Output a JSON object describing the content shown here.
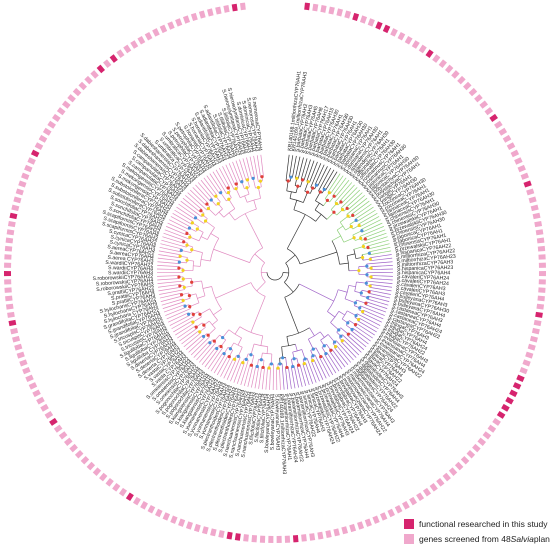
{
  "legend": {
    "items": [
      {
        "label": "functional researched in this study",
        "color": "#d6246e"
      },
      {
        "label_pre": "genes screened from 48 ",
        "label_em": "Salvia",
        "label_post": " plants",
        "color": "#f0a8cc"
      }
    ]
  },
  "colors": {
    "ring_light": "#f0a8cc",
    "ring_dark": "#d6246e",
    "ring_gap": "#ffffff",
    "branch_black": "#333333",
    "branch_pink": "#e08ac0",
    "branch_green": "#8ed07a",
    "branch_purple": "#a064c8",
    "node_red": "#e0403a",
    "node_yellow": "#f2d21e",
    "node_blue": "#4a90d9"
  },
  "tree": {
    "leaves": [
      "KR140168.1miltiorrhizaCYP76AH1",
      "KR140169.1miltiorrhizaCYP76AH3",
      "S.barbataCYP76AH2",
      "S.barbataCYP76AH3",
      "S.barbataCYP76AH5",
      "S.barbataCYP76AH8",
      "S.barbataCYP76AH17",
      "S.barbataCYP76AH15",
      "S.barbataCYP76AH30",
      "S.barbataCYP76AH1",
      "S.barbataCYP76AH30",
      "S.barbataCYP76AH30",
      "S.barbataCYP76AH1",
      "S.barbataCYP76AH30",
      "S.barbataCYP76AH30",
      "S.dorisianaCYP76AH1",
      "S.dorisianaCYP76AH30",
      "S.splendensCYP76AH1",
      "S.splendensCYP76AH30",
      "S.officinalisCYP76AH1",
      "S.officinalisCYP76AH30",
      "S.rosmarinusCYP76AH1",
      "S.rosmarinusCYP76AH30",
      "S.japonicaCYP76AH1",
      "S.japonicaCYP76AH30",
      "S.polystachyaCYP76AH30",
      "S.polystachyaCYP76AH1",
      "S.yangiiCYP76AH1",
      "S.yangiiCYP76AH30",
      "S.coccineaCYP76AH30",
      "S.coccineaCYP76AH1",
      "S.farinaceaCYP76AH1",
      "S.farinaceaCYP76AH30",
      "S.chinensisCYP76AH1",
      "S.chinensisCYP76AH30",
      "S.przewalskiiCYP76AH1",
      "S.przewalskiiCYP76AH30",
      "S.chinensisCYP76AH30",
      "S.japonicaCYP76AH1",
      "S.japonicaCYP76AH1",
      "S.chinensisCYP76AH1",
      "S.przewalskiiCYP76AH1",
      "S.hispanicaCYP76AH22",
      "S.miltiorrhizaCYP76AH22",
      "S.miltiorrhizaCYP76AH23",
      "S.miltiorrhizaCYP76AH3",
      "S.hispanicaCYP76AH23",
      "S.hispanicaCYP76AH4",
      "S.cavaleriCYP76AH24",
      "S.cavaleriCYP76AH24",
      "S.cavaleriCYP76AH3",
      "S.cavaleriCYP76AH3",
      "S.cavaleriCYP76AH4",
      "S.bulleyanaCYP76AH3",
      "S.bulleyanaCYP76AH30",
      "S.bulleyanaCYP76AH4",
      "S.castaneaCYP76AH3",
      "S.castaneaCYP76AH4",
      "S.castaneaCYP76AH24",
      "S.castaneaCYP76AH22",
      "S.trijugaCYP76AH3",
      "S.trijugaCYP76AH4",
      "S.trijugaCYP76AH24",
      "S.trijugaCYP76AH22",
      "S.evansianaCYP76AH3",
      "S.evansianaCYP76AH4",
      "S.evansianaCYP76AH24",
      "S.evansianaCYP76AH22",
      "S.flavaCYP76AH3",
      "S.flavaCYP76AH4",
      "S.flavaCYP76AH22",
      "S.flavaCYP76AH24",
      "S.digitaloidesCYP76AH3",
      "S.digitaloidesCYP76AH4",
      "S.digitaloidesCYP76AH22",
      "S.digitaloidesCYP76AH24",
      "S.maximowiczianaCYP76AH3",
      "S.maximowiczianaCYP76AH4",
      "S.maximowiczianaCYP76AH22",
      "S.maximowiczianaCYP76AH24",
      "S.brevilabraCYP76AH3",
      "S.brevilabraCYP76AH4",
      "S.brevilabraCYP76AH22",
      "S.brevilabraCYP76AH24",
      "S.przewalskiiCYP76AH3",
      "S.przewalskiiCYP76AH4",
      "S.przewalskiiCYP76AH22",
      "S.przewalskiiCYP76AH24",
      "S.sinicaCYP76AH3",
      "S.sinicaCYP76AH4",
      "S.sinicaCYP76AH22",
      "S.paramiltiorrhizaCYP76AH3",
      "S.paramiltiorrhizaCYP76AH4",
      "S.paramiltiorrhizaCYP76AH22",
      "S.paramiltiorrhizaCYP76AH24",
      "S.paramiltiorrhizaCYP76AH1",
      "KR140169.1miltiorrhizaCYP76AH3",
      "S.bowleyanaCYP76AH3",
      "S.bowleyanaCYP76AH4",
      "S.bowleyanaCYP76AH22",
      "S.filicifoliaCYP76AH3",
      "S.filicifoliaCYP76AH4",
      "S.filicifoliaCYP76AH22",
      "S.nanchuanensisCYP76AH3",
      "S.nanchuanensisCYP76AH4",
      "S.nanchuanensisCYP76AH22",
      "S.nanchuanensisCYP76AH24",
      "S.plectranthoidesCYP76AH3",
      "S.plectranthoidesCYP76AH4",
      "S.plectranthoidesCYP76AH22",
      "S.plectranthoidesCYP76AH24",
      "S.yunnanensisCYP76AH3",
      "S.yunnanensisCYP76AH4",
      "S.yunnanensisCYP76AH22",
      "S.yunnanensisCYP76AH24",
      "S.kiangsiensisCYP76AH3",
      "S.kiangsiensisCYP76AH4",
      "S.kiangsiensisCYP76AH22",
      "S.pogonochilaCYP76AH3",
      "S.pogonochilaCYP76AH4",
      "S.pogonochilaCYP76AH22",
      "S.omeiensisCYP76AH3",
      "S.omeiensisCYP76AH4",
      "S.omeiensisCYP76AH22",
      "S.vasta CYP76AH3",
      "S.vastaCYP76AH4",
      "S.vastaCYP76AH22",
      "S.deserta CYP76AH3",
      "S.desertaCYP76AH4",
      "S.desertaCYP76AH22",
      "S.liguliloba CYP76AH3",
      "S.ligulilobaCYP76AH4",
      "S.ligulilobaCYP76AH22",
      "S.tricuspisCYP76AH3",
      "S.tricuspisCYP76AH4",
      "S.tricuspisCYP76AH22",
      "S.grandifoliaCYP76AH3",
      "S.grandifoliaCYP76AH4",
      "S.grandifoliaCYP76AH22",
      "S.hylocharis CYP76AH3",
      "S.hylocharisCYP76AH4",
      "S.hylocharisCYP76AH22",
      "S.prattiiCYP76AH3",
      "S.prattiiCYP76AH4",
      "S.prattiiCYP76AH22",
      "S.roborowskiiCYP76AH3",
      "S.roborowskiiCYP76AH4",
      "S.roborowskiiCYP76AH22",
      "S.wardiiCYP76AH3",
      "S.wardiiCYP76AH4",
      "S.wardiiCYP76AH22",
      "S.aerea CYP76AH3",
      "S.aereaCYP76AH4",
      "S.aereaCYP76AH22",
      "S.cynicaCYP76AH3",
      "S.cynicaCYP76AH4",
      "S.cynicaCYP76AH22",
      "S.scapiformisCYP76AH3",
      "S.scapiformisCYP76AH4",
      "S.scapiformisCYP76AH22",
      "S.sonchifoliaCYP76AH3",
      "S.sonchifoliaCYP76AH4",
      "S.sonchifoliaCYP76AH22",
      "S.substoloniferaCYP76AH3",
      "S.substoloniferaCYP76AH4",
      "S.substoloniferaCYP76AH22",
      "S.mekongensisCYP76AH3",
      "S.mekongensisCYP76AH4",
      "S.mekongensisCYP76AH22",
      "S.campanulataCYP76AH3",
      "S.campanulataCYP76AH4",
      "S.campanulataCYP76AH22",
      "S.dabieshanensisCYP76AH3",
      "S.dabieshanensisCYP76AH4",
      "S.dabieshanensisCYP76AH22",
      "S.umbratica CYP76AH3",
      "S.umbraticaCYP76AH4",
      "S.umbraticaCYP76AH22",
      "S.petrophilaCYP76AH3",
      "S.petrophilaCYP76AH4",
      "S.petrophilaCYP76AH22",
      "S.honaniaCYP76AH3",
      "S.honaniaCYP76AH4",
      "S.honaniaCYP76AH22",
      "S.adiantifoliaCYP76AH3",
      "S.adiantifoliaCYP76AH4",
      "S.adiantifoliaCYP76AH22",
      "S.tiliifoliaCYP76AH3",
      "S.tiliifoliaCYP76AH4",
      "S.tiliifoliaCYP76AH22",
      "S.hierosolymitanaCYP76AH3",
      "S.hierosolymitanaCYP76AH4",
      "S.dominicaCYP76AH3",
      "S.dominicaCYP76AH4",
      "S.nemorosaCYP76AH3",
      "S.nemorosaCYP76AH4"
    ],
    "highlighted_leaf_indices": [
      0,
      6,
      9,
      10,
      16,
      27,
      36,
      52,
      60,
      61,
      62,
      63,
      64,
      65,
      95,
      102,
      103,
      116,
      129,
      142,
      148,
      155,
      163,
      176,
      178,
      194
    ]
  }
}
